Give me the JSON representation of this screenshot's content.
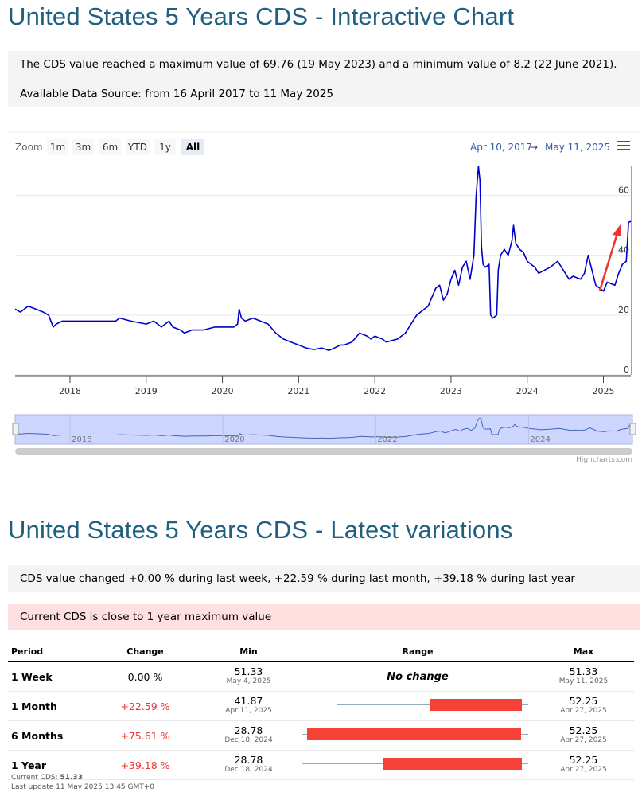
{
  "page": {
    "title1": "United States 5 Years CDS - Interactive Chart",
    "info_line1": "The CDS value reached a maximum value of 69.76 (19 May 2023) and a minimum value of 8.2 (22 June 2021).",
    "info_line2": "Available Data Source: from 16 April 2017 to 11 May 2025",
    "title2": "United States 5 Years CDS - Latest variations",
    "variation_text": "CDS value changed +0.00 % during last week, +22.59 % during last month, +39.18 % during last year",
    "alert_text": "Current CDS is close to 1 year maximum value"
  },
  "toolbar": {
    "zoom_label": "Zoom",
    "buttons": [
      "1m",
      "3m",
      "6m",
      "YTD",
      "1y",
      "All"
    ],
    "active": "All",
    "range_from": "Apr 10, 2017",
    "range_arrow": "→",
    "range_to": "May 11, 2025",
    "menu_icon": "hamburger-menu-icon"
  },
  "chart_data": {
    "type": "line",
    "title": "",
    "xlabel": "",
    "ylabel": "",
    "x_ticks": [
      "2018",
      "2019",
      "2020",
      "2021",
      "2022",
      "2023",
      "2024",
      "2025"
    ],
    "y_ticks": [
      0,
      20,
      40,
      60
    ],
    "ylim": [
      0,
      70
    ],
    "xlim": [
      2017.28,
      2025.36
    ],
    "grid": true,
    "line_color": "#0000cc",
    "series": [
      {
        "x": [
          2017.28,
          2017.35,
          2017.45,
          2017.55,
          2017.65,
          2017.72,
          2017.78,
          2017.82,
          2017.9,
          2018.0,
          2018.1,
          2018.3,
          2018.5,
          2018.6,
          2018.65,
          2018.8,
          2019.0,
          2019.1,
          2019.15,
          2019.2,
          2019.3,
          2019.35,
          2019.45,
          2019.5,
          2019.6,
          2019.75,
          2019.9,
          2019.98,
          2020.05,
          2020.1,
          2020.15,
          2020.2,
          2020.22,
          2020.25,
          2020.3,
          2020.4,
          2020.6,
          2020.7,
          2020.8,
          2020.9,
          2021.0,
          2021.1,
          2021.2,
          2021.3,
          2021.4,
          2021.47,
          2021.55,
          2021.6,
          2021.7,
          2021.8,
          2021.9,
          2021.95,
          2022.0,
          2022.1,
          2022.15,
          2022.3,
          2022.4,
          2022.5,
          2022.55,
          2022.65,
          2022.7,
          2022.8,
          2022.85,
          2022.9,
          2022.95,
          2023.0,
          2023.05,
          2023.1,
          2023.15,
          2023.2,
          2023.25,
          2023.3,
          2023.33,
          2023.36,
          2023.38,
          2023.4,
          2023.42,
          2023.45,
          2023.5,
          2023.52,
          2023.55,
          2023.6,
          2023.62,
          2023.65,
          2023.7,
          2023.75,
          2023.8,
          2023.82,
          2023.85,
          2023.9,
          2023.95,
          2024.0,
          2024.1,
          2024.15,
          2024.3,
          2024.4,
          2024.5,
          2024.55,
          2024.6,
          2024.7,
          2024.75,
          2024.8,
          2024.85,
          2024.9,
          2024.95,
          2025.0,
          2025.05,
          2025.15,
          2025.2,
          2025.25,
          2025.3,
          2025.33,
          2025.36
        ],
        "y": [
          22,
          21,
          23,
          22,
          21,
          20,
          16,
          17,
          18,
          18,
          18,
          18,
          18,
          18,
          19,
          18,
          17,
          18,
          17,
          16,
          18,
          16,
          15,
          14,
          15,
          15,
          16,
          16,
          16,
          16,
          16,
          17,
          22,
          19,
          18,
          19,
          17,
          14,
          12,
          11,
          10,
          9,
          8.5,
          9,
          8.2,
          9,
          10,
          10,
          11,
          14,
          13,
          12,
          13,
          12,
          11,
          12,
          14,
          18,
          20,
          22,
          23,
          29,
          30,
          25,
          27,
          32,
          35,
          30,
          36,
          38,
          32,
          40,
          60,
          69.76,
          65,
          43,
          37,
          36,
          37,
          20,
          19,
          20,
          35,
          40,
          42,
          40,
          45,
          50,
          44,
          42,
          41,
          38,
          36,
          34,
          36,
          38,
          34,
          32,
          33,
          32,
          34,
          40,
          35,
          30,
          29,
          28,
          31,
          30,
          34,
          37,
          38,
          51,
          51.33
        ]
      }
    ]
  },
  "navigator": {
    "labels": [
      "2018",
      "2020",
      "2022",
      "2024"
    ]
  },
  "credits": "Highcharts.com",
  "table": {
    "headers": [
      "Period",
      "Change",
      "Min",
      "Range",
      "Max"
    ],
    "rows": [
      {
        "period": "1 Week",
        "change": "0.00 %",
        "min": "51.33",
        "min_date": "May 4, 2025",
        "range_text": "No change",
        "max": "51.33",
        "max_date": "May 11, 2025",
        "range": null
      },
      {
        "period": "1 Month",
        "change": "+22.59 %",
        "min": "41.87",
        "min_date": "Apr 11, 2025",
        "range_text": "",
        "max": "52.25",
        "max_date": "Apr 27, 2025",
        "range": {
          "line_start": 0.15,
          "line_end": 0.98,
          "bar_start": 0.55,
          "bar_end": 0.95
        }
      },
      {
        "period": "6 Months",
        "change": "+75.61 %",
        "min": "28.78",
        "min_date": "Dec 18, 2024",
        "range_text": "",
        "max": "52.25",
        "max_date": "Apr 27, 2025",
        "range": {
          "line_start": 0.0,
          "line_end": 0.98,
          "bar_start": 0.02,
          "bar_end": 0.95
        }
      },
      {
        "period": "1 Year",
        "change": "+39.18 %",
        "min": "28.78",
        "min_date": "Dec 18, 2024",
        "range_text": "",
        "max": "52.25",
        "max_date": "Apr 27, 2025",
        "range": {
          "line_start": 0.0,
          "line_end": 0.98,
          "bar_start": 0.35,
          "bar_end": 0.95
        }
      }
    ]
  },
  "footer": {
    "current_label": "Current CDS: ",
    "current_value": "51.33",
    "last_update": "Last update 11 May 2025 13:45 GMT+0"
  }
}
